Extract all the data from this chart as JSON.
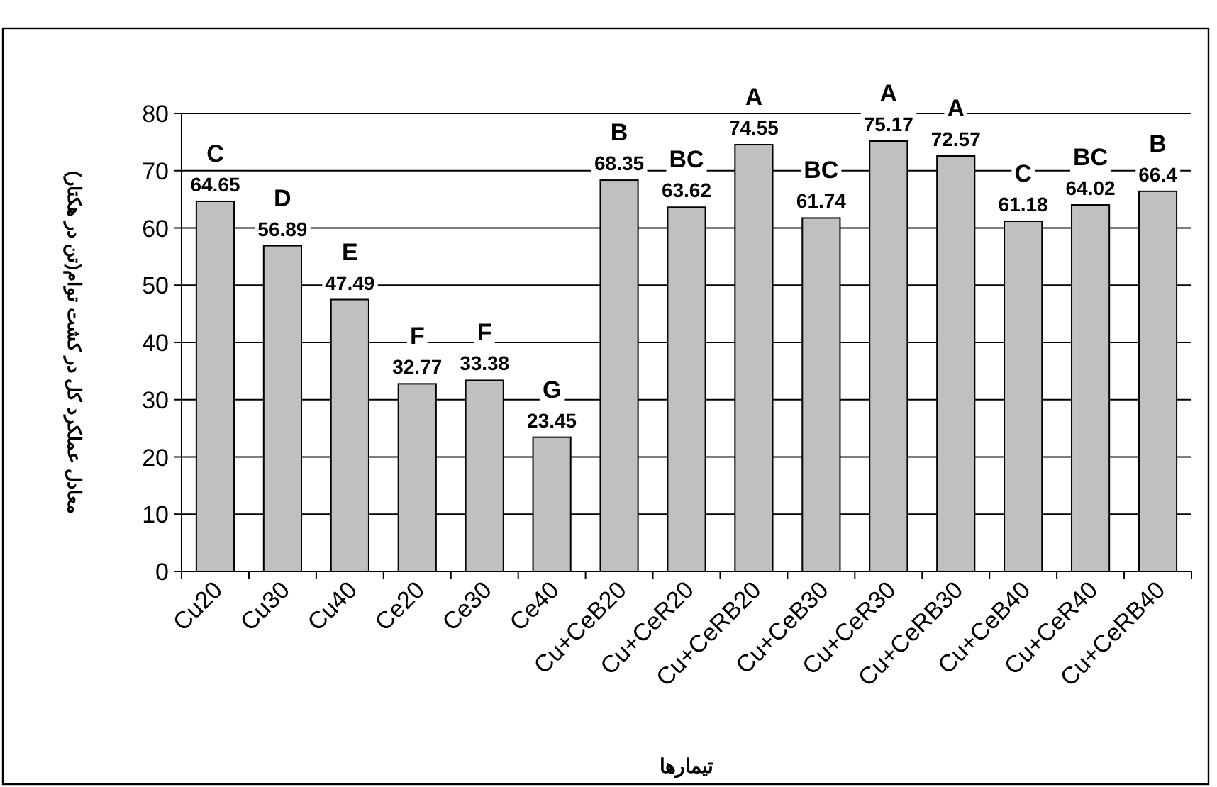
{
  "chart_data": {
    "type": "bar",
    "xlabel": "تیمارها",
    "ylabel": "معادل عملکرد کل در کشت توام(تن در هکتار)",
    "categories": [
      "Cu20",
      "Cu30",
      "Cu40",
      "Ce20",
      "Ce30",
      "Ce40",
      "Cu+CeB20",
      "Cu+CeR20",
      "Cu+CeRB20",
      "Cu+CeB30",
      "Cu+CeR30",
      "Cu+CeRB30",
      "Cu+CeB40",
      "Cu+CeR40",
      "Cu+CeRB40"
    ],
    "values": [
      64.65,
      56.89,
      47.49,
      32.77,
      33.38,
      23.45,
      68.35,
      63.62,
      74.55,
      61.74,
      75.17,
      72.57,
      61.18,
      64.02,
      66.4
    ],
    "color": "#c0c0c0",
    "data_labels": true,
    "annotations": [
      {
        "text": "C",
        "x": "Cu20",
        "y": 64.65
      },
      {
        "text": "D",
        "x": "Cu30",
        "y": 56.89
      },
      {
        "text": "E",
        "x": "Cu40",
        "y": 47.49
      },
      {
        "text": "F",
        "x": "Ce20",
        "y": 32.77
      },
      {
        "text": "F",
        "x": "Ce30",
        "y": 33.38
      },
      {
        "text": "G",
        "x": "Ce40",
        "y": 23.45
      },
      {
        "text": "B",
        "x": "Cu+CeB20",
        "y": 68.35
      },
      {
        "text": "BC",
        "x": "Cu+CeR20",
        "y": 63.62
      },
      {
        "text": "A",
        "x": "Cu+CeRB20",
        "y": 74.55
      },
      {
        "text": "BC",
        "x": "Cu+CeB30",
        "y": 61.74
      },
      {
        "text": "A",
        "x": "Cu+CeR30",
        "y": 75.17
      },
      {
        "text": "A",
        "x": "Cu+CeRB30",
        "y": 72.57
      },
      {
        "text": "C",
        "x": "Cu+CeB40",
        "y": 61.18
      },
      {
        "text": "BC",
        "x": "Cu+CeR40",
        "y": 64.02
      },
      {
        "text": "B",
        "x": "Cu+CeRB40",
        "y": 66.4
      }
    ],
    "ylim": [
      0,
      80
    ],
    "yticks": [
      0,
      10,
      20,
      30,
      40,
      50,
      60,
      70,
      80
    ],
    "grid": "y"
  }
}
